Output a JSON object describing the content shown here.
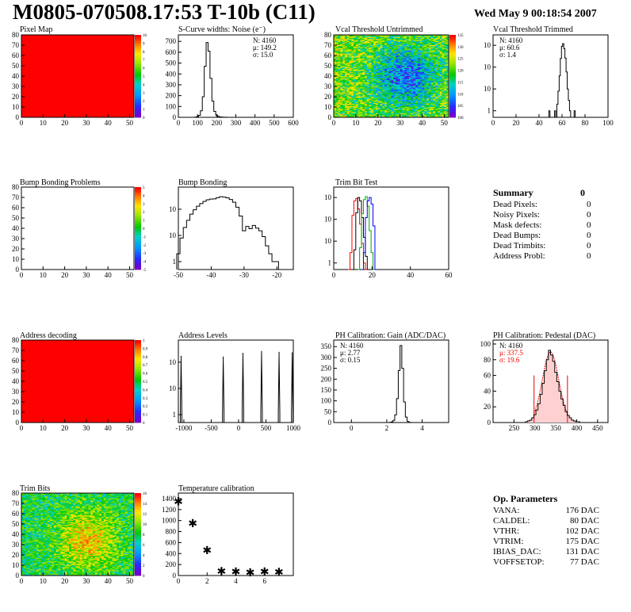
{
  "header": {
    "title": "M0805-070508.17:53 T-10b (C11)",
    "date": "Wed May  9 00:18:54 2007"
  },
  "chart_data": [
    {
      "id": "pixel-map",
      "type": "heatmap",
      "title": "Pixel Map",
      "x_ticks": [
        "0",
        "10",
        "20",
        "30",
        "40",
        "50"
      ],
      "y_ticks": [
        "0",
        "10",
        "20",
        "30",
        "40",
        "50",
        "60",
        "70",
        "80"
      ],
      "xlim": [
        0,
        52
      ],
      "ylim": [
        0,
        80
      ],
      "fill": "#ff0000",
      "palette_ticks": [
        "0",
        "1",
        "2",
        "3",
        "4",
        "5",
        "6",
        "7",
        "8",
        "9",
        "10"
      ]
    },
    {
      "id": "scurve-widths",
      "type": "histogram",
      "title": "S-Curve widths: Noise (e⁻)",
      "stats": [
        "N: 4160",
        "μ: 149.2",
        "σ: 15.0"
      ],
      "x_ticks": [
        "0",
        "100",
        "200",
        "300",
        "400",
        "500",
        "600"
      ],
      "y_ticks": [
        "0",
        "100",
        "200",
        "300",
        "400",
        "500",
        "600",
        "700"
      ],
      "xlim": [
        0,
        600
      ],
      "ylim": [
        0,
        760
      ],
      "x": [
        90,
        100,
        110,
        120,
        130,
        140,
        150,
        160,
        170,
        180,
        190,
        200,
        210,
        220,
        230,
        240,
        250,
        260
      ],
      "values": [
        2,
        6,
        18,
        60,
        190,
        470,
        690,
        610,
        360,
        150,
        55,
        20,
        8,
        4,
        2,
        1,
        1,
        0
      ]
    },
    {
      "id": "vcal-untrimmed",
      "type": "heatmap",
      "title": "Vcal Threshold Untrimmed",
      "x_ticks": [
        "0",
        "10",
        "20",
        "30",
        "40",
        "50"
      ],
      "y_ticks": [
        "0",
        "10",
        "20",
        "30",
        "40",
        "50",
        "60",
        "70",
        "80"
      ],
      "xlim": [
        0,
        52
      ],
      "ylim": [
        0,
        80
      ],
      "palette_ticks": [
        "100",
        "105",
        "110",
        "115",
        "120",
        "125",
        "130",
        "135"
      ]
    },
    {
      "id": "vcal-trimmed",
      "type": "histogram",
      "title": "Vcal Threshold Trimmed",
      "stats": [
        "N: 4160",
        "μ: 60.6",
        "σ: 1.4"
      ],
      "x_ticks": [
        "0",
        "20",
        "40",
        "60",
        "80",
        "100"
      ],
      "y_ticks": [
        "1",
        "10",
        "10²",
        "10³"
      ],
      "xlim": [
        0,
        100
      ],
      "log_y": true,
      "ylim": [
        0.5,
        3000
      ],
      "x": [
        49,
        50,
        51,
        52,
        53,
        54,
        55,
        56,
        57,
        58,
        59,
        60,
        61,
        62,
        63,
        64,
        65,
        66,
        67,
        68,
        69,
        70,
        71,
        72,
        73,
        74
      ],
      "values": [
        1,
        0,
        0,
        0,
        0,
        1,
        0,
        2,
        8,
        40,
        250,
        900,
        1200,
        700,
        260,
        60,
        10,
        3,
        1,
        0,
        0,
        0,
        1,
        0,
        0,
        0
      ]
    },
    {
      "id": "bump-bonding-problems",
      "type": "heatmap",
      "title": "Bump Bonding Problems",
      "x_ticks": [
        "0",
        "10",
        "20",
        "30",
        "40",
        "50"
      ],
      "y_ticks": [
        "0",
        "10",
        "20",
        "30",
        "40",
        "50",
        "60",
        "70",
        "80"
      ],
      "xlim": [
        0,
        52
      ],
      "ylim": [
        0,
        80
      ],
      "fill": "#ffffff",
      "palette_ticks": [
        "-5",
        "-4",
        "-3",
        "-2",
        "-1",
        "0",
        "1",
        "2",
        "3",
        "4",
        "5"
      ]
    },
    {
      "id": "bump-bonding",
      "type": "histogram",
      "title": "Bump Bonding",
      "x_ticks": [
        "-50",
        "-40",
        "-30",
        "-20"
      ],
      "y_ticks": [
        "1",
        "10",
        "10²"
      ],
      "xlim": [
        -50,
        -15
      ],
      "log_y": true,
      "ylim": [
        0.5,
        700
      ],
      "x": [
        -50,
        -49,
        -48,
        -47,
        -46,
        -45,
        -44,
        -43,
        -42,
        -41,
        -40,
        -39,
        -38,
        -37,
        -36,
        -35,
        -34,
        -33,
        -32,
        -31,
        -30,
        -29,
        -28,
        -27,
        -26,
        -25,
        -24,
        -23,
        -22,
        -21,
        -20,
        -19,
        -18
      ],
      "values": [
        2,
        8,
        20,
        38,
        65,
        95,
        130,
        165,
        200,
        230,
        245,
        248,
        275,
        300,
        290,
        270,
        235,
        185,
        120,
        55,
        15,
        22,
        18,
        24,
        19,
        15,
        9,
        4,
        2,
        1,
        1,
        0,
        0
      ]
    },
    {
      "id": "trim-bit-test",
      "type": "histogram",
      "title": "Trim Bit Test",
      "x_ticks": [
        "0",
        "20",
        "40",
        "60"
      ],
      "y_ticks": [
        "1",
        "10",
        "10²",
        "10³"
      ],
      "xlim": [
        0,
        60
      ],
      "log_y": true,
      "ylim": [
        0.5,
        3000
      ],
      "series": [
        {
          "color": "#ff0000",
          "x": [
            8,
            9,
            10,
            11,
            12,
            13,
            14,
            15,
            16,
            17
          ],
          "values": [
            0,
            3,
            150,
            700,
            900,
            300,
            60,
            8,
            1,
            0
          ]
        },
        {
          "color": "#000000",
          "x": [
            10,
            11,
            12,
            13,
            14,
            15,
            16,
            17,
            18
          ],
          "values": [
            0,
            4,
            200,
            1000,
            700,
            120,
            15,
            2,
            0
          ]
        },
        {
          "color": "#00aa00",
          "x": [
            13,
            14,
            15,
            16,
            17,
            18,
            19,
            20,
            21
          ],
          "values": [
            0,
            5,
            180,
            800,
            1100,
            400,
            30,
            3,
            0
          ]
        },
        {
          "color": "#0000ff",
          "x": [
            15,
            16,
            17,
            18,
            19,
            20,
            21,
            22
          ],
          "values": [
            0,
            3,
            120,
            700,
            1000,
            500,
            50,
            0
          ]
        }
      ]
    },
    {
      "id": "address-decoding",
      "type": "heatmap",
      "title": "Address decoding",
      "x_ticks": [
        "0",
        "10",
        "20",
        "30",
        "40",
        "50"
      ],
      "y_ticks": [
        "0",
        "10",
        "20",
        "30",
        "40",
        "50",
        "60",
        "70",
        "80"
      ],
      "xlim": [
        0,
        52
      ],
      "ylim": [
        0,
        80
      ],
      "fill": "#ff0000",
      "palette_ticks": [
        "0",
        "0.1",
        "0.2",
        "0.3",
        "0.4",
        "0.5",
        "0.6",
        "0.7",
        "0.8",
        "0.9",
        "1"
      ]
    },
    {
      "id": "address-levels",
      "type": "histogram",
      "title": "Address Levels",
      "x_ticks": [
        "-1000",
        "-500",
        "0",
        "500",
        "1000"
      ],
      "y_ticks": [
        "1",
        "10",
        "10²"
      ],
      "xlim": [
        -1100,
        1000
      ],
      "log_y": true,
      "ylim": [
        0.5,
        700
      ],
      "peaks": [
        [
          -1050,
          170
        ],
        [
          -280,
          160
        ],
        [
          80,
          220
        ],
        [
          420,
          260
        ],
        [
          740,
          240
        ],
        [
          980,
          230
        ]
      ],
      "peak_width": 28
    },
    {
      "id": "ph-gain",
      "type": "histogram",
      "title": "PH Calibration: Gain (ADC/DAC)",
      "stats": [
        "N: 4160",
        "μ: 2.77",
        "σ: 0.15"
      ],
      "x_ticks": [
        "0",
        "2",
        "4"
      ],
      "y_ticks": [
        "0",
        "50",
        "100",
        "150",
        "200",
        "250",
        "300",
        "350"
      ],
      "xlim": [
        -1,
        5.5
      ],
      "ylim": [
        0,
        380
      ],
      "x": [
        2.2,
        2.3,
        2.4,
        2.5,
        2.6,
        2.7,
        2.8,
        2.9,
        3.0,
        3.1,
        3.2,
        3.3
      ],
      "values": [
        1,
        3,
        10,
        35,
        110,
        240,
        355,
        250,
        95,
        25,
        5,
        1
      ]
    },
    {
      "id": "ph-pedestal",
      "type": "histogram",
      "title": "PH Calibration: Pedestal (DAC)",
      "stats": [
        "N: 4160",
        "μ: 337.5",
        "σ: 19.6"
      ],
      "x_ticks": [
        "250",
        "300",
        "350",
        "400",
        "450"
      ],
      "y_ticks": [
        "0",
        "20",
        "40",
        "60",
        "80",
        "100"
      ],
      "xlim": [
        200,
        475
      ],
      "ylim": [
        0,
        105
      ],
      "x": [
        280,
        285,
        290,
        295,
        300,
        305,
        310,
        315,
        320,
        325,
        330,
        335,
        340,
        345,
        350,
        355,
        360,
        365,
        370,
        375,
        380,
        385,
        390,
        395,
        400,
        405,
        410
      ],
      "values": [
        1,
        2,
        3,
        6,
        10,
        16,
        24,
        36,
        50,
        66,
        80,
        92,
        86,
        78,
        64,
        52,
        40,
        30,
        22,
        14,
        9,
        6,
        3,
        2,
        1,
        1,
        0
      ],
      "fit_range": [
        298,
        378
      ]
    },
    {
      "id": "trim-bits",
      "type": "heatmap",
      "title": "Trim Bits",
      "x_ticks": [
        "0",
        "10",
        "20",
        "30",
        "40",
        "50"
      ],
      "y_ticks": [
        "0",
        "10",
        "20",
        "30",
        "40",
        "50",
        "60",
        "70",
        "80"
      ],
      "xlim": [
        0,
        52
      ],
      "ylim": [
        0,
        80
      ],
      "palette_ticks": [
        "0",
        "2",
        "4",
        "6",
        "8",
        "10",
        "12",
        "14",
        "16"
      ]
    },
    {
      "id": "temperature-calibration",
      "type": "scatter",
      "title": "Temperature calibration",
      "x_ticks": [
        "0",
        "2",
        "4",
        "6"
      ],
      "y_ticks": [
        "0",
        "200",
        "400",
        "600",
        "800",
        "1000",
        "1200",
        "1400"
      ],
      "xlim": [
        0,
        8
      ],
      "ylim": [
        0,
        1500
      ],
      "x": [
        0,
        1,
        2,
        3,
        4,
        5,
        6,
        7
      ],
      "values": [
        1350,
        950,
        460,
        80,
        70,
        60,
        70,
        65
      ]
    }
  ],
  "summary": {
    "title": "Summary",
    "total": "0",
    "rows": [
      {
        "label": "Dead Pixels:",
        "value": "0"
      },
      {
        "label": "Noisy Pixels:",
        "value": "0"
      },
      {
        "label": "Mask defects:",
        "value": "0"
      },
      {
        "label": "Dead Bumps:",
        "value": "0"
      },
      {
        "label": "Dead Trimbits:",
        "value": "0"
      },
      {
        "label": "Address Probl:",
        "value": "0"
      }
    ]
  },
  "op_params": {
    "title": "Op. Parameters",
    "rows": [
      {
        "label": "VANA:",
        "value": "176 DAC"
      },
      {
        "label": "CALDEL:",
        "value": "80 DAC"
      },
      {
        "label": "VTHR:",
        "value": "102 DAC"
      },
      {
        "label": "VTRIM:",
        "value": "175 DAC"
      },
      {
        "label": "IBIAS_DAC:",
        "value": "131 DAC"
      },
      {
        "label": "VOFFSETOP:",
        "value": "77 DAC"
      }
    ]
  }
}
